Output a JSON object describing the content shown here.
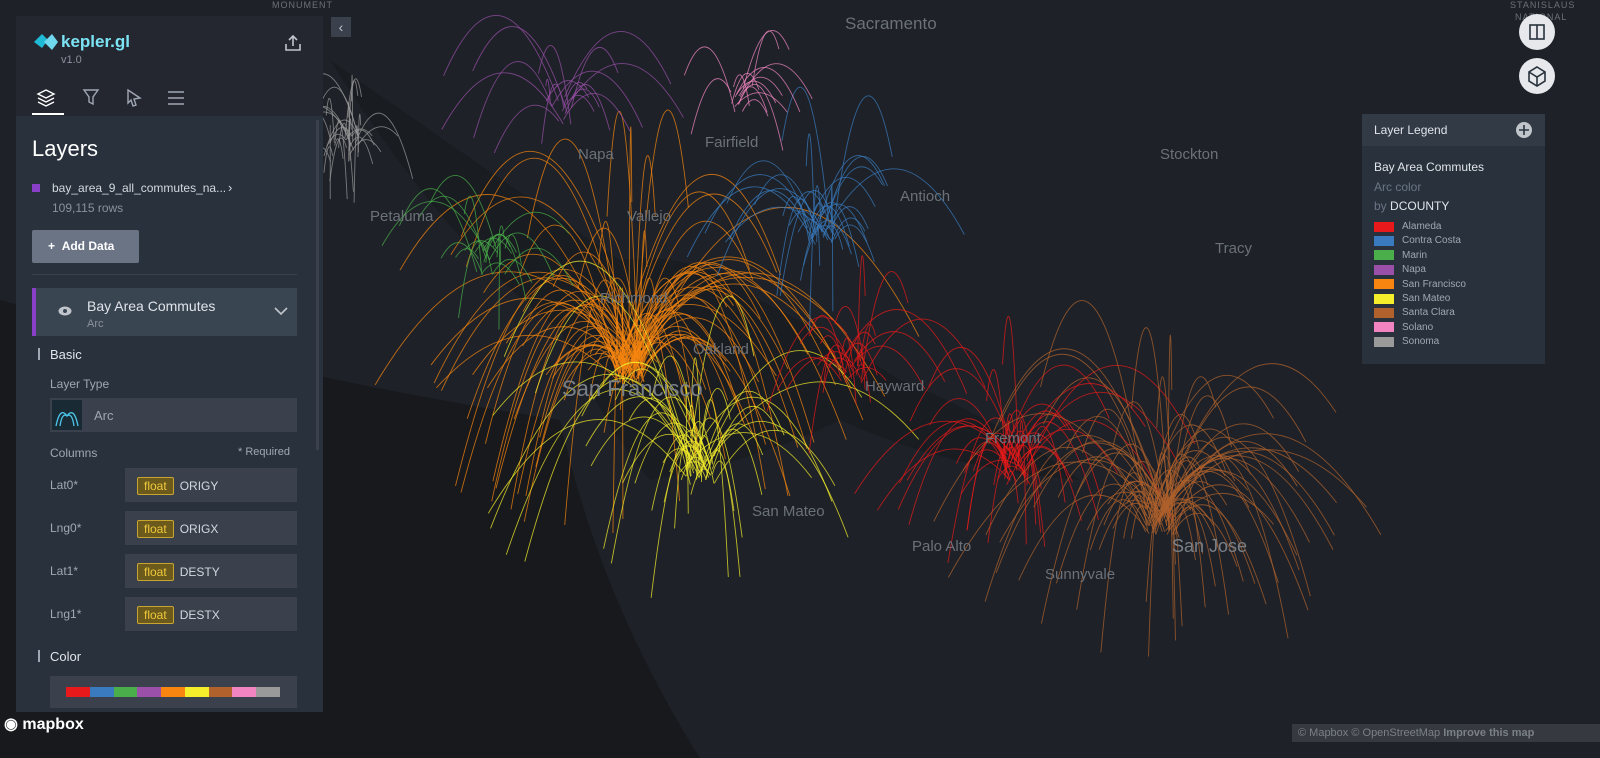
{
  "sidebar": {
    "logo": "kepler.gl",
    "version": "v1.0",
    "panel_title": "Layers",
    "dataset": {
      "name": "bay_area_9_all_commutes_na...",
      "rows": "109,115 rows"
    },
    "add_data": "Add Data",
    "layer": {
      "name": "Bay Area Commutes",
      "subtitle": "Arc"
    },
    "basic": {
      "heading": "Basic",
      "layer_type_label": "Layer Type",
      "layer_type": "Arc",
      "columns_label": "Columns",
      "required": "* Required",
      "columns": [
        {
          "label": "Lat0*",
          "type": "float",
          "field": "ORIGY"
        },
        {
          "label": "Lng0*",
          "type": "float",
          "field": "ORIGX"
        },
        {
          "label": "Lat1*",
          "type": "float",
          "field": "DESTY"
        },
        {
          "label": "Lng1*",
          "type": "float",
          "field": "DESTX"
        }
      ]
    },
    "color_heading": "Color"
  },
  "map": {
    "labels": [
      "MONUMENT",
      "Sacramento",
      "STANISLAUS",
      "NATIONAL",
      "Stockton",
      "Tracy",
      "Petaluma",
      "Vallejo",
      "Napa",
      "Fairfield",
      "Antioch",
      "Richmond",
      "Oakland",
      "San Francisco",
      "Hayward",
      "Fremont",
      "San Mateo",
      "Palo Alto",
      "Sunnyvale",
      "San Jose"
    ]
  },
  "legend": {
    "title": "Layer Legend",
    "layer": "Bay Area Commutes",
    "channel": "Arc color",
    "by": "by",
    "field": "DCOUNTY",
    "items": [
      {
        "name": "Alameda",
        "color": "#e8191a"
      },
      {
        "name": "Contra Costa",
        "color": "#3a7bbf"
      },
      {
        "name": "Marin",
        "color": "#4aae4a"
      },
      {
        "name": "Napa",
        "color": "#9a4fa8"
      },
      {
        "name": "San Francisco",
        "color": "#f7850f"
      },
      {
        "name": "San Mateo",
        "color": "#f5ef2b"
      },
      {
        "name": "Santa Clara",
        "color": "#b0612c"
      },
      {
        "name": "Solano",
        "color": "#f285c1"
      },
      {
        "name": "Sonoma",
        "color": "#9a9a9a"
      }
    ]
  },
  "footer": {
    "mapbox": "mapbox",
    "attribution": "© Mapbox © OpenStreetMap",
    "improve": "Improve this map"
  }
}
